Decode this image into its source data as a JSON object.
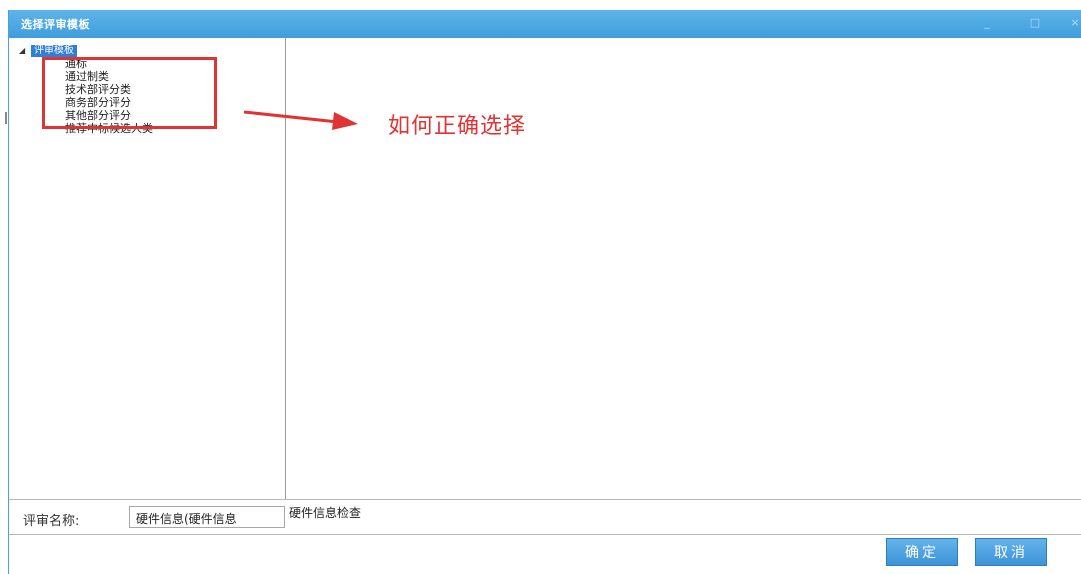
{
  "window": {
    "title": "选择评审模板",
    "controls": {
      "minimize": "_",
      "maximize": "□",
      "close": "×"
    }
  },
  "tree": {
    "root_label": "评审模板",
    "items": [
      "通标",
      "通过制类",
      "技术部评分类",
      "商务部分评分",
      "其他部分评分",
      "推荐中标候选人类"
    ]
  },
  "annotation": {
    "text": "如何正确选择",
    "color": "#e03434"
  },
  "review": {
    "name_label": "评审名称:",
    "name_value": "硬件信息(硬件信息",
    "description": "硬件信息检查"
  },
  "buttons": {
    "ok": "确定",
    "cancel": "取消"
  },
  "colors": {
    "titlebar": "#4aa7e3",
    "selection": "#2f7fd6",
    "button": "#4a9fdf"
  }
}
